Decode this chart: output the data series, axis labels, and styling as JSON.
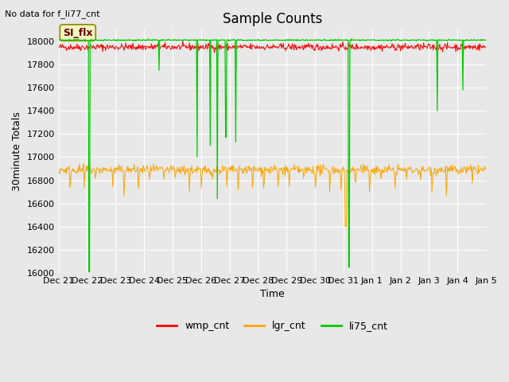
{
  "title": "Sample Counts",
  "top_left_text": "No data for f_li77_cnt",
  "xlabel": "Time",
  "ylabel": "30minute Totals",
  "ylim": [
    16000,
    18100
  ],
  "yticks": [
    16000,
    16200,
    16400,
    16600,
    16800,
    17000,
    17200,
    17400,
    17600,
    17800,
    18000
  ],
  "bg_color": "#e8e8e8",
  "plot_bg_color": "#e8e8e8",
  "annotation_box": "SI_flx",
  "legend": [
    "wmp_cnt",
    "lgr_cnt",
    "li75_cnt"
  ],
  "legend_colors": [
    "#ff0000",
    "#ffa500",
    "#00cc00"
  ],
  "wmp_base": 17950,
  "wmp_noise": 15,
  "lgr_base": 16890,
  "lgr_noise": 20,
  "li75_base": 18010,
  "num_days": 15
}
